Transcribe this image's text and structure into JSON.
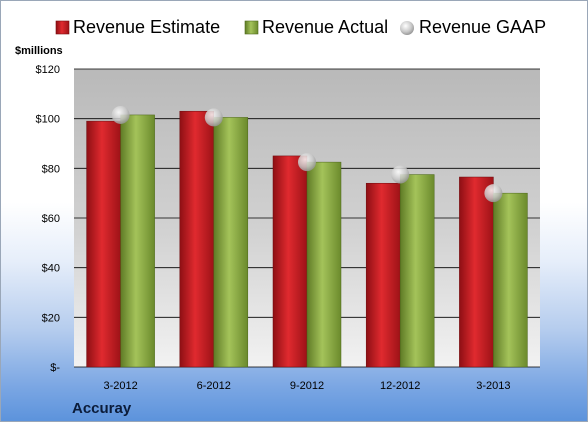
{
  "chart_data": {
    "type": "bar",
    "title": "",
    "ylabel": "$millions",
    "xlabel": "",
    "categories": [
      "3-2012",
      "6-2012",
      "9-2012",
      "12-2012",
      "3-2013"
    ],
    "series": [
      {
        "name": "Revenue Estimate",
        "type": "bar",
        "color": "#d8191f",
        "values": [
          99,
          103,
          85,
          74,
          76.5
        ]
      },
      {
        "name": "Revenue Actual",
        "type": "bar",
        "color": "#8cad3e",
        "values": [
          101.5,
          100.5,
          82.5,
          77.5,
          70
        ]
      },
      {
        "name": "Revenue GAAP",
        "type": "marker",
        "color": "#c0c0c0",
        "values": [
          101.5,
          100.5,
          82.5,
          77.5,
          70
        ]
      }
    ],
    "ylim": [
      0,
      120
    ],
    "yticks": [
      0,
      20,
      40,
      60,
      80,
      100,
      120
    ],
    "ytick_labels": [
      "$-",
      "$20",
      "$40",
      "$60",
      "$80",
      "$100",
      "$120"
    ],
    "grid": true,
    "legend_position": "top"
  },
  "company": "Accuray",
  "colors": {
    "plot_background": "#c8c8c8",
    "gridline": "#000000"
  }
}
